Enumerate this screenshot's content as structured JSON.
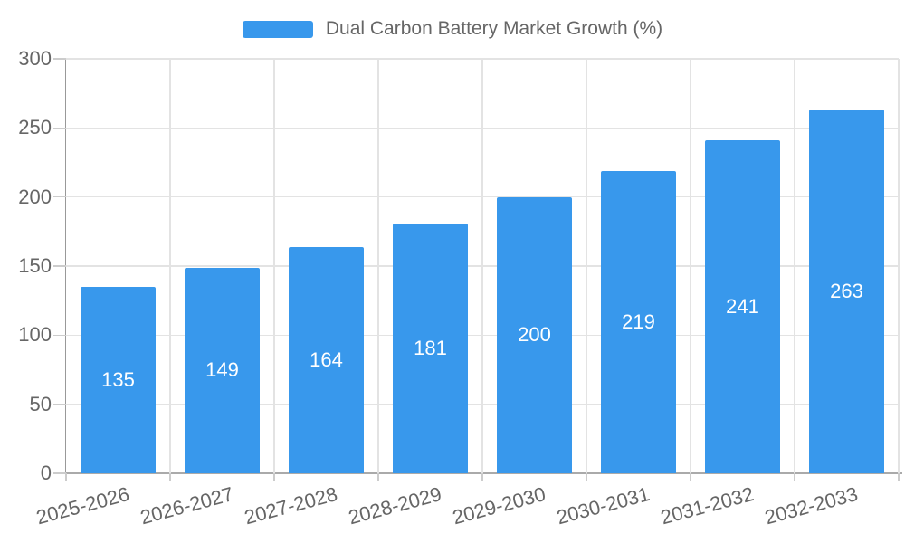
{
  "chart_data": {
    "type": "bar",
    "title": "Dual Carbon Battery Market Growth (%)",
    "categories": [
      "2025-2026",
      "2026-2027",
      "2027-2028",
      "2028-2029",
      "2029-2030",
      "2030-2031",
      "2031-2032",
      "2032-2033"
    ],
    "values": [
      135,
      149,
      164,
      181,
      200,
      219,
      241,
      263
    ],
    "xlabel": "",
    "ylabel": "",
    "ylim": [
      0,
      300
    ],
    "yticks": [
      0,
      50,
      100,
      150,
      200,
      250,
      300
    ],
    "grid": true,
    "legend_position": "top-center",
    "x_label_rotation_deg": -15,
    "bar_color": "#3898EC",
    "value_label_color": "#ffffff",
    "axis_text_color": "#666666",
    "gridline_color": "#e3e3e3"
  }
}
